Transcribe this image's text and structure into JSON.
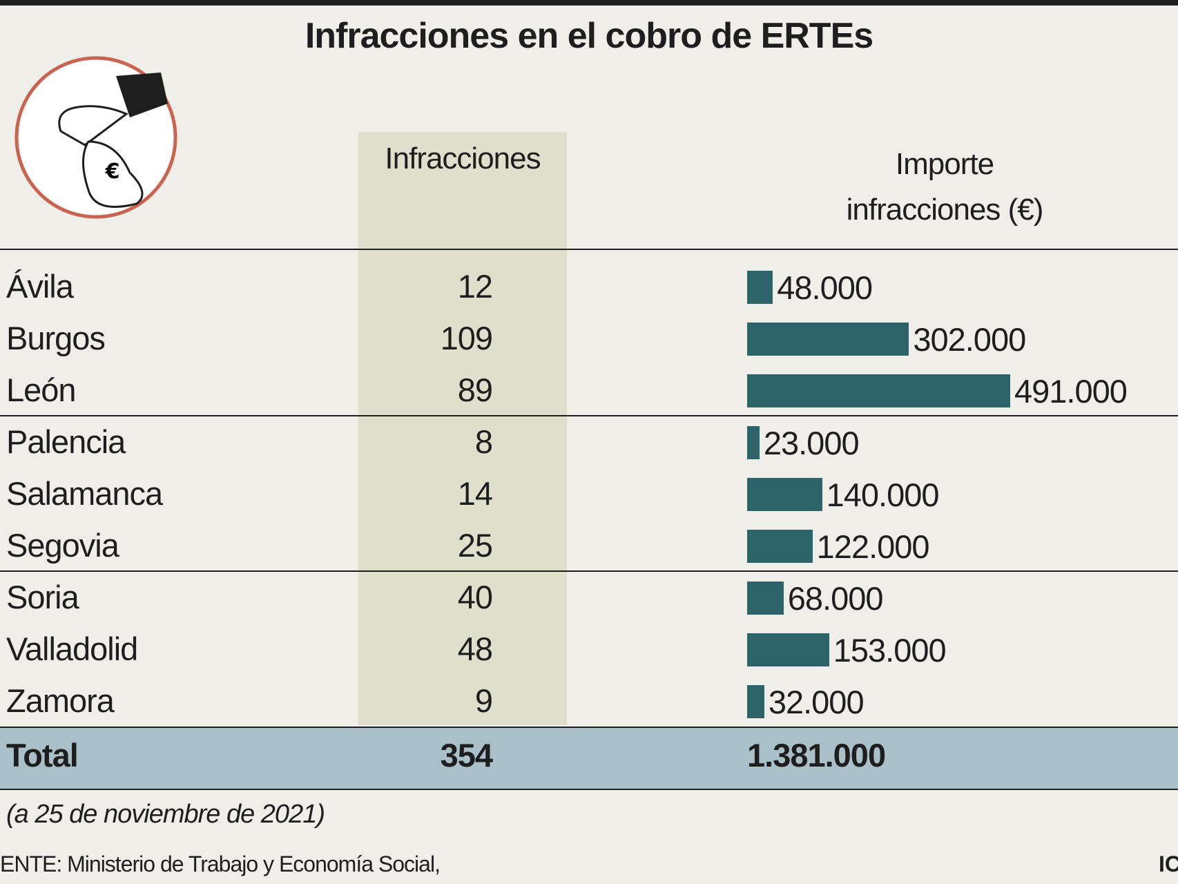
{
  "chart_data": {
    "type": "bar-table",
    "title": "Infracciones en el cobro de ERTEs",
    "icon_symbol": "€",
    "categories": [
      "Ávila",
      "Burgos",
      "León",
      "Palencia",
      "Salamanca",
      "Segovia",
      "Soria",
      "Valladolid",
      "Zamora"
    ],
    "infracciones": {
      "header": "Infracciones",
      "values": [
        12,
        109,
        89,
        8,
        14,
        25,
        40,
        48,
        9
      ]
    },
    "importe": {
      "header": "Importe infracciones (€)",
      "color": "#2d6469",
      "values": [
        48000,
        302000,
        491000,
        23000,
        140000,
        122000,
        68000,
        153000,
        32000
      ],
      "value_labels": [
        "48.000",
        "302.000",
        "491.000",
        "23.000",
        "140.000",
        "122.000",
        "68.000",
        "153.000",
        "32.000"
      ]
    },
    "total": {
      "label": "Total",
      "infracciones": 354,
      "importe": 1381000,
      "importe_label": "1.381.000"
    },
    "note": "(a 25 de noviembre de 2021)",
    "source": "ENTE: Ministerio de Trabajo y Economía Social,",
    "credit": "IC"
  }
}
